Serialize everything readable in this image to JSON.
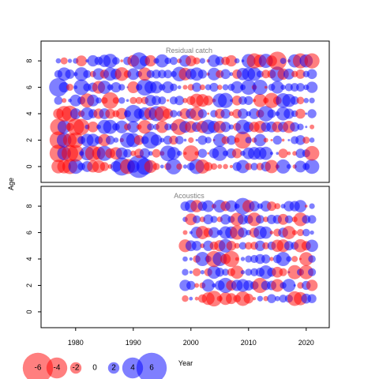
{
  "chart_data": {
    "type": "scatter",
    "subtype": "bubble",
    "ylabel": "Age",
    "xlabel": "Year",
    "xlim": [
      1974,
      2024
    ],
    "ylim": [
      -1.2,
      9.5
    ],
    "x_ticks": [
      1980,
      1990,
      2000,
      2010,
      2020
    ],
    "y_ticks": [
      0,
      2,
      4,
      6,
      8
    ],
    "colors": {
      "positive": "#0000ff",
      "negative": "#ff0000",
      "alpha": 0.5
    },
    "panels": [
      {
        "title": "Residual catch",
        "years": [
          1977,
          2021
        ],
        "ages": [
          0,
          8
        ],
        "residuals": [
          [
            -2.5,
            -2.5,
            -2.8,
            2.7,
            1.2,
            1.9,
            -2.1,
            -2.3,
            -1.5,
            -0.6,
            1.9,
            3.4,
            -2.8,
            2.2,
            4.4,
            3.1,
            -2.3,
            -1.1,
            0.4,
            -1.1,
            2.9,
            -0.9,
            0.5,
            1.3,
            2.8,
            -2.6,
            -1.5,
            -1.0,
            -0.6,
            -0.7,
            -0.3,
            1.5,
            2.4,
            -1.1,
            1.2,
            -1.2,
            1.7,
            -2.4,
            -0.5,
            2.6,
            0.6,
            -0.5,
            2.1,
            1.1,
            2.7
          ],
          [
            -3.3,
            2.5,
            -3.1,
            -3.1,
            0.6,
            2.6,
            -2.9,
            -2.4,
            2.8,
            -1.7,
            -2.2,
            2.1,
            1.4,
            -0.8,
            -1.6,
            1.8,
            0.6,
            -1.4,
            -0.6,
            2.9,
            2.3,
            0.7,
            -0.3,
            -3.0,
            -0.5,
            1.5,
            -0.1,
            1.7,
            2.8,
            0.8,
            1.7,
            -1.7,
            0.7,
            2.1,
            2.3,
            2.3,
            2.4,
            0.3,
            0.2,
            -1.6,
            -0.4,
            -0.6,
            1.6,
            1.3,
            -2.7
          ],
          [
            -3.3,
            2.7,
            -2.5,
            -2.9,
            1.3,
            2.3,
            2.3,
            1.3,
            -2.2,
            1.5,
            0.7,
            -0.5,
            2.8,
            2.6,
            -1.7,
            1.3,
            3.2,
            2.0,
            0.6,
            1.5,
            -1.5,
            1.4,
            0.2,
            -0.8,
            0.1,
            1.6,
            1.0,
            -0.1,
            2.4,
            -1.3,
            1.6,
            -0.7,
            -3.2,
            1.0,
            -0.7,
            2.2,
            -0.6,
            -0.1,
            1.5,
            -0.2,
            0.1,
            1.3,
            1.7,
            -1.1,
            0.7
          ],
          [
            -3.1,
            2.4,
            -1.3,
            -3.2,
            -3.0,
            0.6,
            -1.9,
            0.6,
            2.6,
            2.6,
            1.2,
            2.3,
            -1.1,
            2.1,
            -0.7,
            -2.5,
            1.1,
            0.9,
            -2.2,
            1.1,
            1.3,
            -3.0,
            2.1,
            -2.1,
            1.7,
            -2.2,
            2.7,
            2.2,
            -2.2,
            1.8,
            0.7,
            -1.3,
            2.7,
            1.8,
            -1.8,
            -2.2,
            1.7,
            1.9,
            -1.9,
            1.8,
            -2.2,
            1.6,
            1.0,
            0.1,
            -0.6
          ],
          [
            -1.8,
            -2.9,
            -3.0,
            1.9,
            -1.0,
            2.3,
            1.5,
            -1.8,
            1.9,
            -1.7,
            -1.1,
            -2.0,
            1.1,
            3.3,
            1.8,
            2.3,
            -2.3,
            2.8,
            -2.8,
            -1.8,
            1.2,
            0.8,
            -1.9,
            1.8,
            -2.5,
            1.5,
            -0.1,
            1.2,
            -1.7,
            1.7,
            -0.6,
            -1.6,
            1.8,
            0.7,
            1.9,
            -1.3,
            2.9,
            1.4,
            0.6,
            2.5,
            1.8,
            1.0,
            -1.7,
            0.1,
            1.5
          ],
          [
            1.4,
            -0.6,
            0.4,
            2.1,
            1.3,
            -2.6,
            2.1,
            0.9,
            -1.0,
            -3.1,
            -1.0,
            1.0,
            0.2,
            -1.1,
            -1.1,
            -1.2,
            2.0,
            1.6,
            1.3,
            -0.1,
            1.3,
            1.6,
            -0.7,
            -1.5,
            -2.5,
            -2.3,
            -1.7,
            -0.4,
            2.6,
            2.8,
            0.2,
            -1.7,
            1.4,
            1.5,
            -0.3,
            -2.4,
            -0.8,
            -2.8,
            -1.4,
            2.7,
            2.4,
            1.4,
            -1.2,
            0.7,
            0.8
          ],
          [
            3.5,
            1.8,
            -1.1,
            0.4,
            2.9,
            1.3,
            1.6,
            -2.3,
            2.4,
            0.9,
            1.8,
            1.0,
            0.0,
            -2.1,
            1.0,
            3.1,
            2.2,
            2.2,
            1.0,
            2.1,
            1.2,
            0.4,
            -0.6,
            -1.0,
            1.6,
            -0.8,
            0.9,
            1.5,
            -0.7,
            0.9,
            1.1,
            2.2,
            0.8,
            2.8,
            -0.7,
            2.8,
            -0.2,
            1.1,
            2.3,
            0.7,
            1.3,
            1.4,
            1.4,
            0.8,
            2.0
          ],
          [
            1.3,
            2.4,
            1.6,
            0.5,
            2.5,
            1.3,
            -0.9,
            2.1,
            -1.5,
            2.4,
            1.9,
            -2.5,
            -1.2,
            2.1,
            0.9,
            -2.4,
            1.3,
            1.5,
            1.4,
            1.4,
            0.9,
            2.7,
            -2.3,
            1.9,
            2.4,
            1.5,
            -0.3,
            2.3,
            -1.3,
            1.7,
            0.4,
            -1.6,
            2.2,
            2.4,
            2.5,
            1.1,
            -1.4,
            -1.4,
            2.8,
            -2.0,
            1.9,
            -1.0,
            -1.6,
            1.0,
            1.7
          ],
          [
            0.7,
            -1.1,
            0.5,
            0.8,
            -1.9,
            0.3,
            2.0,
            1.4,
            2.2,
            2.6,
            1.2,
            -0.2,
            1.4,
            -2.1,
            3.2,
            1.8,
            -2.0,
            0.8,
            2.4,
            1.0,
            1.3,
            -0.6,
            2.1,
            -1.9,
            -1.1,
            0.8,
            -0.3,
            2.2,
            1.5,
            -1.4,
            -2.0,
            0.7,
            0.2,
            2.5,
            -2.8,
            -2.3,
            2.6,
            -1.9,
            -3.5,
            0.9,
            -0.3,
            2.4,
            -2.8,
            2.4,
            -2.8
          ]
        ]
      },
      {
        "title": "Acoustics",
        "years": [
          1999,
          2021
        ],
        "ages": [
          1,
          8
        ],
        "residuals": [
          [
            -1.0,
            0.4,
            -0.4,
            -1.4,
            -2.3,
            -2.9,
            -0.8,
            -2.3,
            -1.9,
            -1.2,
            -2.7,
            -1.7,
            -0.3,
            0.8,
            -0.7,
            1.5,
            0.7,
            1.3,
            1.3,
            -2.7,
            -2.4,
            1.7,
            1.5
          ],
          [
            2.0,
            1.5,
            -0.6,
            -0.9,
            2.3,
            0.5,
            1.7,
            2.8,
            -1.8,
            2.0,
            2.3,
            1.8,
            1.4,
            -2.8,
            1.6,
            1.6,
            -2.3,
            1.0,
            2.4,
            0.1,
            -1.0,
            1.5,
            -2.0
          ],
          [
            1.0,
            0.3,
            -1.3,
            0.5,
            -1.3,
            2.4,
            1.5,
            1.1,
            -1.3,
            -2.4,
            0.5,
            1.1,
            1.3,
            1.5,
            2.5,
            1.5,
            -1.9,
            -1.3,
            0.1,
            -2.6,
            1.1,
            -2.6,
            1.3
          ],
          [
            0.7,
            0.3,
            -1.2,
            2.6,
            1.0,
            -3.0,
            2.6,
            -1.8,
            -3.0,
            -0.4,
            0.5,
            1.1,
            1.3,
            1.7,
            1.5,
            -0.5,
            1.4,
            2.6,
            0.8,
            -0.9,
            -0.1,
            -2.5,
            1.2
          ],
          [
            -2.3,
            1.9,
            1.7,
            -0.6,
            1.8,
            -1.4,
            -2.0,
            2.5,
            -1.7,
            -0.8,
            1.2,
            -1.2,
            -1.3,
            1.8,
            -1.1,
            1.4,
            -2.2,
            -2.3,
            1.6,
            1.3,
            -2.4,
            -1.6,
            2.2
          ],
          [
            -0.6,
            0.3,
            2.1,
            -2.4,
            -1.6,
            1.9,
            0.8,
            2.3,
            2.2,
            -2.6,
            1.7,
            0.8,
            -1.7,
            2.4,
            2.2,
            -0.4,
            -1.3,
            1.7,
            -2.4,
            -0.7,
            -1.1,
            1.2,
            0.5
          ],
          [
            0.7,
            -2.1,
            1.3,
            -0.8,
            1.7,
            1.1,
            -0.8,
            1.8,
            1.1,
            -2.4,
            1.8,
            1.5,
            -2.5,
            1.4,
            -0.8,
            1.6,
            1.5,
            -1.9,
            1.3,
            -0.8,
            -2.5,
            1.4,
            1.4
          ],
          [
            1.6,
            2.2,
            -2.2,
            1.6,
            2.1,
            -0.6,
            2.3,
            -1.7,
            2.1,
            0.7,
            3.1,
            -2.2,
            1.8,
            0.8,
            1.9,
            -1.6,
            -0.9,
            0.6,
            1.8,
            1.8,
            2.2,
            -0.2,
            0.8
          ]
        ]
      }
    ],
    "legend": [
      {
        "label": "-6",
        "value": -6
      },
      {
        "label": "-4",
        "value": -4
      },
      {
        "label": "-2",
        "value": -2
      },
      {
        "label": "0",
        "value": 0
      },
      {
        "label": "2",
        "value": 2
      },
      {
        "label": "4",
        "value": 4
      },
      {
        "label": "6",
        "value": 6
      }
    ]
  }
}
